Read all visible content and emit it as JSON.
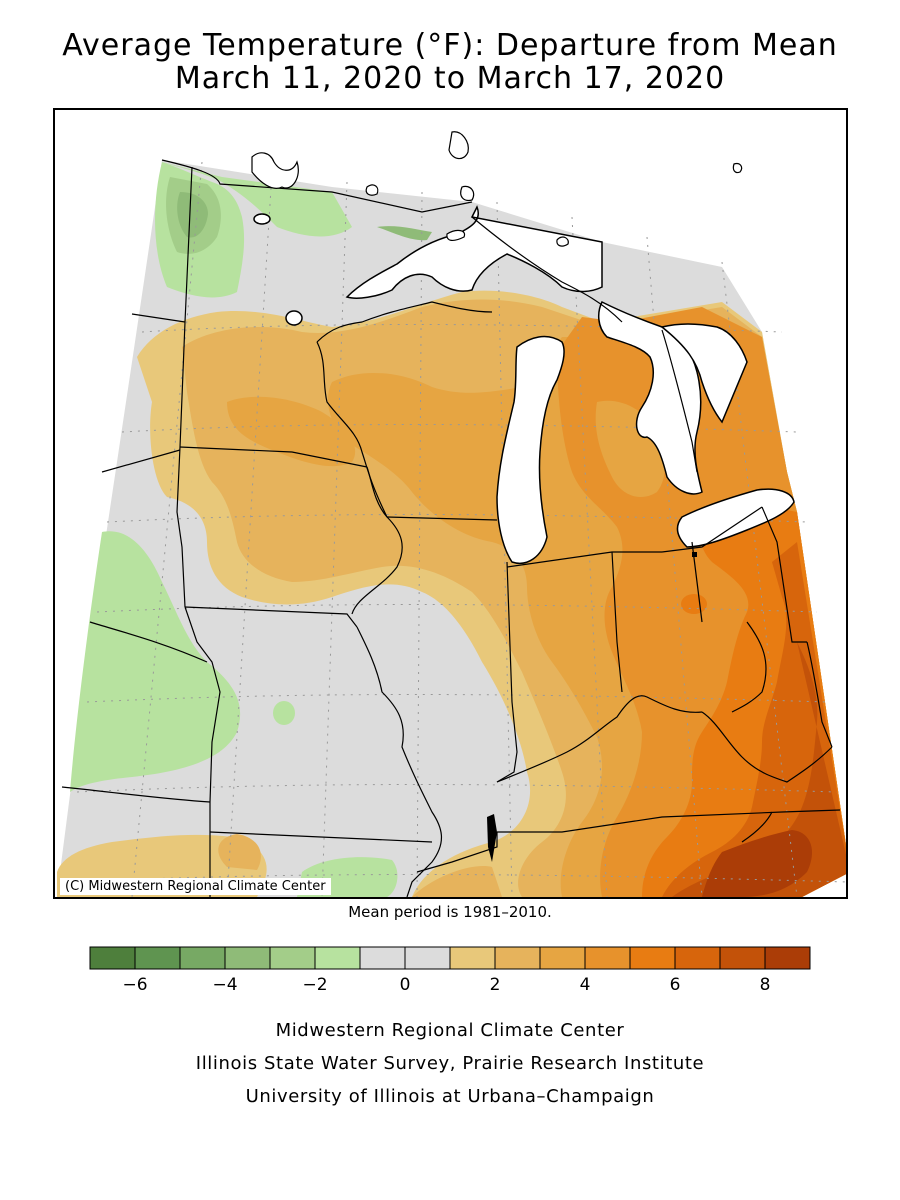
{
  "title": {
    "line1": "Average Temperature (°F): Departure from Mean",
    "line2": "March 11, 2020 to March 17, 2020"
  },
  "map": {
    "copyright": "(C) Midwestern Regional Climate Center",
    "mean_period": "Mean period is 1981–2010."
  },
  "legend": {
    "colors": [
      "#4e7f3c",
      "#5f9450",
      "#77a964",
      "#8fbb78",
      "#a3cd89",
      "#b7e29f",
      "#dcdcdc",
      "#dcdcdc",
      "#e8c87a",
      "#e6b35c",
      "#e6a542",
      "#e7922c",
      "#e87c12",
      "#d7650c",
      "#c35209",
      "#ab3d07"
    ],
    "ticks": [
      {
        "label": "−6",
        "value": -6
      },
      {
        "label": "−4",
        "value": -4
      },
      {
        "label": "−2",
        "value": -2
      },
      {
        "label": "0",
        "value": 0
      },
      {
        "label": "2",
        "value": 2
      },
      {
        "label": "4",
        "value": 4
      },
      {
        "label": "6",
        "value": 6
      },
      {
        "label": "8",
        "value": 8
      }
    ],
    "min": -7,
    "max": 9
  },
  "footer": {
    "line1": "Midwestern Regional Climate Center",
    "line2": "Illinois State Water Survey, Prairie Research Institute",
    "line3": "University of Illinois at Urbana–Champaign"
  }
}
